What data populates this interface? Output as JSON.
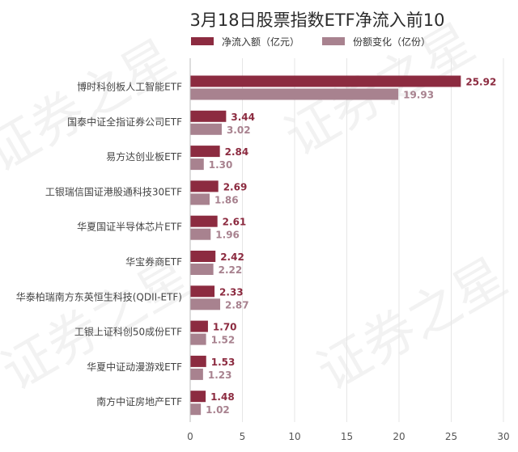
{
  "chart_data": {
    "type": "bar",
    "orientation": "horizontal",
    "title": "3月18日股票指数ETF净流入前10",
    "categories": [
      "博时科创板人工智能ETF",
      "国泰中证全指证券公司ETF",
      "易方达创业板ETF",
      "工银瑞信国证港股通科技30ETF",
      "华夏国证半导体芯片ETF",
      "华宝券商ETF",
      "华泰柏瑞南方东英恒生科技(QDII-ETF)",
      "工银上证科创50成份ETF",
      "华夏中证动漫游戏ETF",
      "南方中证房地产ETF"
    ],
    "series": [
      {
        "name": "净流入额（亿元）",
        "color": "#8c2b40",
        "values": [
          25.92,
          3.44,
          2.84,
          2.69,
          2.61,
          2.42,
          2.33,
          1.7,
          1.53,
          1.48
        ],
        "value_labels": [
          "25.92",
          "3.44",
          "2.84",
          "2.69",
          "2.61",
          "2.42",
          "2.33",
          "1.70",
          "1.53",
          "1.48"
        ]
      },
      {
        "name": "份额变化（亿份）",
        "color": "#a8828f",
        "values": [
          19.93,
          3.02,
          1.3,
          1.86,
          1.96,
          2.22,
          2.87,
          1.52,
          1.23,
          1.02
        ],
        "value_labels": [
          "19.93",
          "3.02",
          "1.30",
          "1.86",
          "1.96",
          "2.22",
          "2.87",
          "1.52",
          "1.23",
          "1.02"
        ]
      }
    ],
    "xlim": [
      0,
      30
    ],
    "xticks": [
      "0",
      "5",
      "10",
      "15",
      "20",
      "25",
      "30"
    ],
    "grid": true,
    "legend_position": "top",
    "watermark": "证券之星"
  }
}
